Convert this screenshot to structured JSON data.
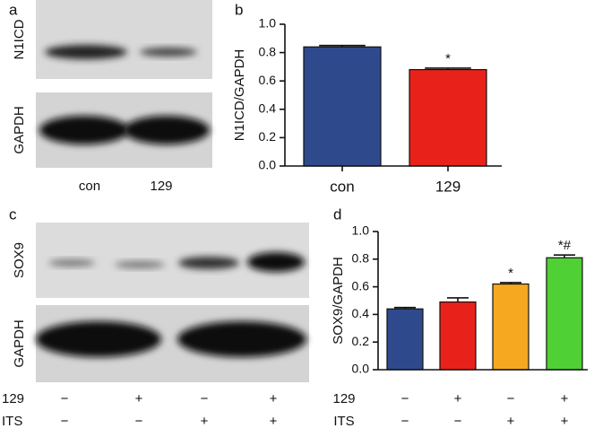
{
  "chart_data": [
    {
      "type": "bar",
      "panel": "b",
      "ylabel": "N1ICD/GAPDH",
      "categories": [
        "con",
        "129"
      ],
      "values": [
        0.84,
        0.68
      ],
      "errors": [
        0.01,
        0.01
      ],
      "colors": [
        "#2f4a8c",
        "#e8221b"
      ],
      "ylim": [
        0,
        1
      ],
      "yticks": [
        {
          "value": 0,
          "label": "0.0"
        },
        0.2,
        0.4,
        0.6,
        0.8,
        {
          "value": 1,
          "label": "1.0"
        }
      ],
      "annotations": [
        {
          "category": "129",
          "text": "*"
        }
      ]
    },
    {
      "type": "bar",
      "panel": "d",
      "ylabel": "SOX9/GAPDH",
      "categories": [
        null,
        null,
        null,
        null
      ],
      "values": [
        0.44,
        0.49,
        0.62,
        0.81
      ],
      "errors": [
        0.01,
        0.03,
        0.01,
        0.02
      ],
      "colors": [
        "#2f4a8c",
        "#e8221b",
        "#f6a821",
        "#4fd135"
      ],
      "x_rows": [
        {
          "label": "129",
          "signs": [
            "−",
            "+",
            "−",
            "+"
          ]
        },
        {
          "label": "ITS",
          "signs": [
            "−",
            "−",
            "+",
            "+"
          ]
        }
      ],
      "ylim": [
        0,
        1
      ],
      "yticks": [
        {
          "value": 0,
          "label": "0.0"
        },
        0.2,
        0.4,
        0.6,
        0.8,
        {
          "value": 1,
          "label": "1.0"
        }
      ],
      "annotations": [
        {
          "category": 2,
          "text": "*"
        },
        {
          "category": 3,
          "text": "*#"
        }
      ]
    }
  ],
  "blots": {
    "a": {
      "panel": "a",
      "bands": [
        "N1ICD",
        "GAPDH"
      ],
      "lanes": [
        "con",
        "129"
      ]
    },
    "c": {
      "panel": "c",
      "bands": [
        "SOX9",
        "GAPDH"
      ],
      "rows": [
        {
          "label": "129",
          "signs": [
            "−",
            "+",
            "−",
            "+"
          ]
        },
        {
          "label": "ITS",
          "signs": [
            "−",
            "−",
            "+",
            "+"
          ]
        }
      ]
    }
  }
}
